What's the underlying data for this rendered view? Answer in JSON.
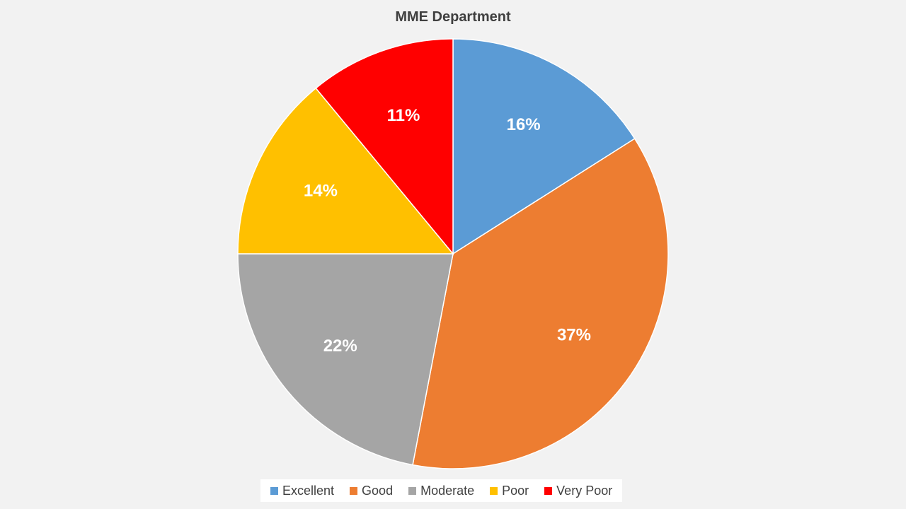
{
  "chart_data": {
    "type": "pie",
    "title": "MME Department",
    "categories": [
      "Excellent",
      "Good",
      "Moderate",
      "Poor",
      "Very Poor"
    ],
    "values": [
      16,
      37,
      22,
      14,
      11
    ],
    "labels": [
      "16%",
      "37%",
      "22%",
      "14%",
      "11%"
    ],
    "colors": [
      "#5b9bd5",
      "#ed7d31",
      "#a5a5a5",
      "#ffc000",
      "#ff0000"
    ],
    "legend_position": "bottom"
  }
}
